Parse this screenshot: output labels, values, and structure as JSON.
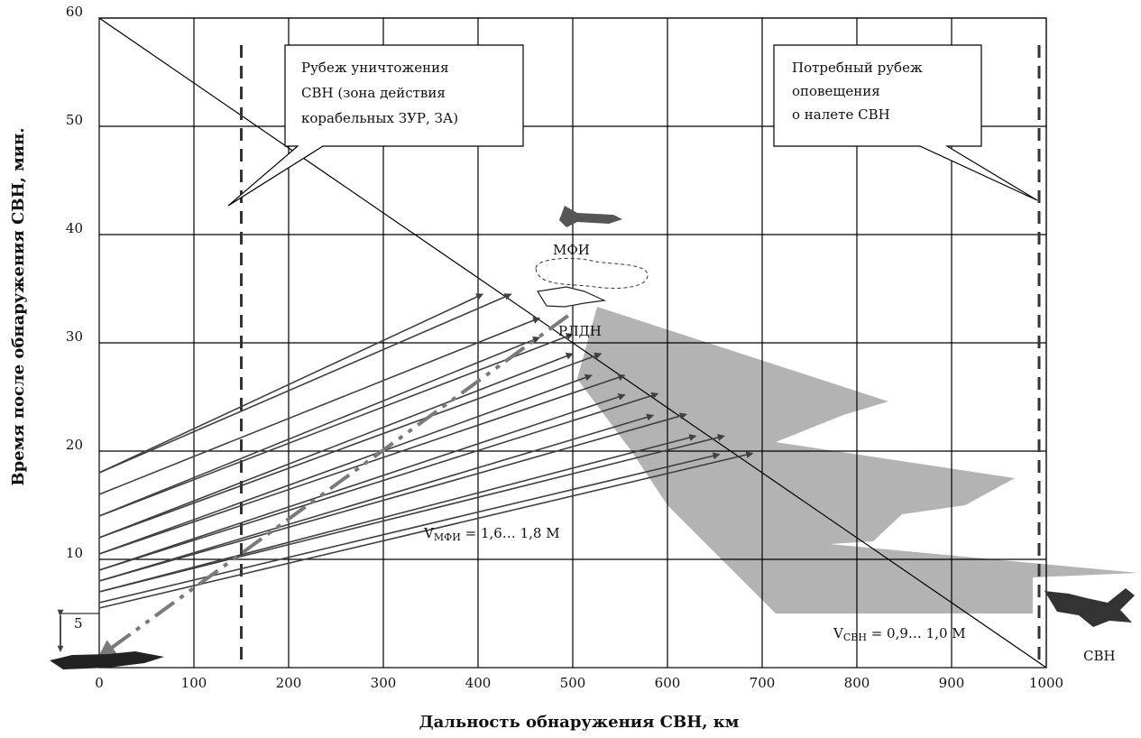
{
  "chart_data": {
    "type": "line",
    "xlabel": "Дальность обнаружения  СВН, км",
    "ylabel": "Время  после  обнаружения  СВН, мин.",
    "xlim": [
      0,
      1000
    ],
    "ylim": [
      0,
      60
    ],
    "x_ticks": [
      "0",
      "100",
      "200",
      "300",
      "400",
      "500",
      "600",
      "700",
      "800",
      "900",
      "1000"
    ],
    "y_ticks": [
      "10",
      "20",
      "30",
      "40",
      "50",
      "60"
    ],
    "grid": true,
    "svn_line": {
      "x": [
        0,
        1000
      ],
      "y": [
        60,
        0
      ]
    },
    "boundaries": [
      {
        "x": 150,
        "text": [
          "Рубеж уничтожения",
          "СВН (зона действия",
          "корабельных ЗУР, ЗА)"
        ]
      },
      {
        "x": 1000,
        "text": [
          "Потребный рубеж",
          "оповещения",
          "о налете СВН"
        ]
      }
    ],
    "interceptor_vectors": [
      {
        "x0": 0,
        "y0": 18,
        "x1": 405,
        "y1": 34.5
      },
      {
        "x0": 0,
        "y0": 18,
        "x1": 435,
        "y1": 34.5
      },
      {
        "x0": 0,
        "y0": 16,
        "x1": 465,
        "y1": 32.3
      },
      {
        "x0": 0,
        "y0": 14,
        "x1": 465,
        "y1": 30.5
      },
      {
        "x0": 0,
        "y0": 14,
        "x1": 500,
        "y1": 30.8
      },
      {
        "x0": 0,
        "y0": 12,
        "x1": 500,
        "y1": 29
      },
      {
        "x0": 0,
        "y0": 12,
        "x1": 530,
        "y1": 29
      },
      {
        "x0": 0,
        "y0": 10.5,
        "x1": 520,
        "y1": 27
      },
      {
        "x0": 0,
        "y0": 10.5,
        "x1": 555,
        "y1": 27
      },
      {
        "x0": 0,
        "y0": 9,
        "x1": 555,
        "y1": 25.2
      },
      {
        "x0": 0,
        "y0": 9,
        "x1": 590,
        "y1": 25.3
      },
      {
        "x0": 0,
        "y0": 8,
        "x1": 585,
        "y1": 23.3
      },
      {
        "x0": 0,
        "y0": 8,
        "x1": 620,
        "y1": 23.4
      },
      {
        "x0": 0,
        "y0": 7,
        "x1": 630,
        "y1": 21.4
      },
      {
        "x0": 0,
        "y0": 7,
        "x1": 660,
        "y1": 21.4
      },
      {
        "x0": 0,
        "y0": 6,
        "x1": 655,
        "y1": 19.7
      },
      {
        "x0": 0,
        "y0": 5.5,
        "x1": 690,
        "y1": 19.8
      }
    ],
    "dash_dot_line": {
      "x": [
        0,
        495
      ],
      "y": [
        1,
        32.5
      ]
    },
    "bracket": {
      "y": [
        0,
        5
      ],
      "label": "5"
    },
    "annotations": {
      "mfi": "МФИ",
      "rldn": "РЛДН",
      "svn": "СВН",
      "v_mfi": "V",
      "v_mfi_sub": "МФИ",
      "v_mfi_val": " = 1,6… 1,8 М",
      "v_svn": "V",
      "v_svn_sub": "СВН",
      "v_svn_val": " = 0,9… 1,0 М"
    },
    "colors": {
      "grid": "#000000",
      "arrow": "#404040",
      "shade": "#b3b3b3",
      "dash_dot": "#7a7a7a"
    }
  }
}
